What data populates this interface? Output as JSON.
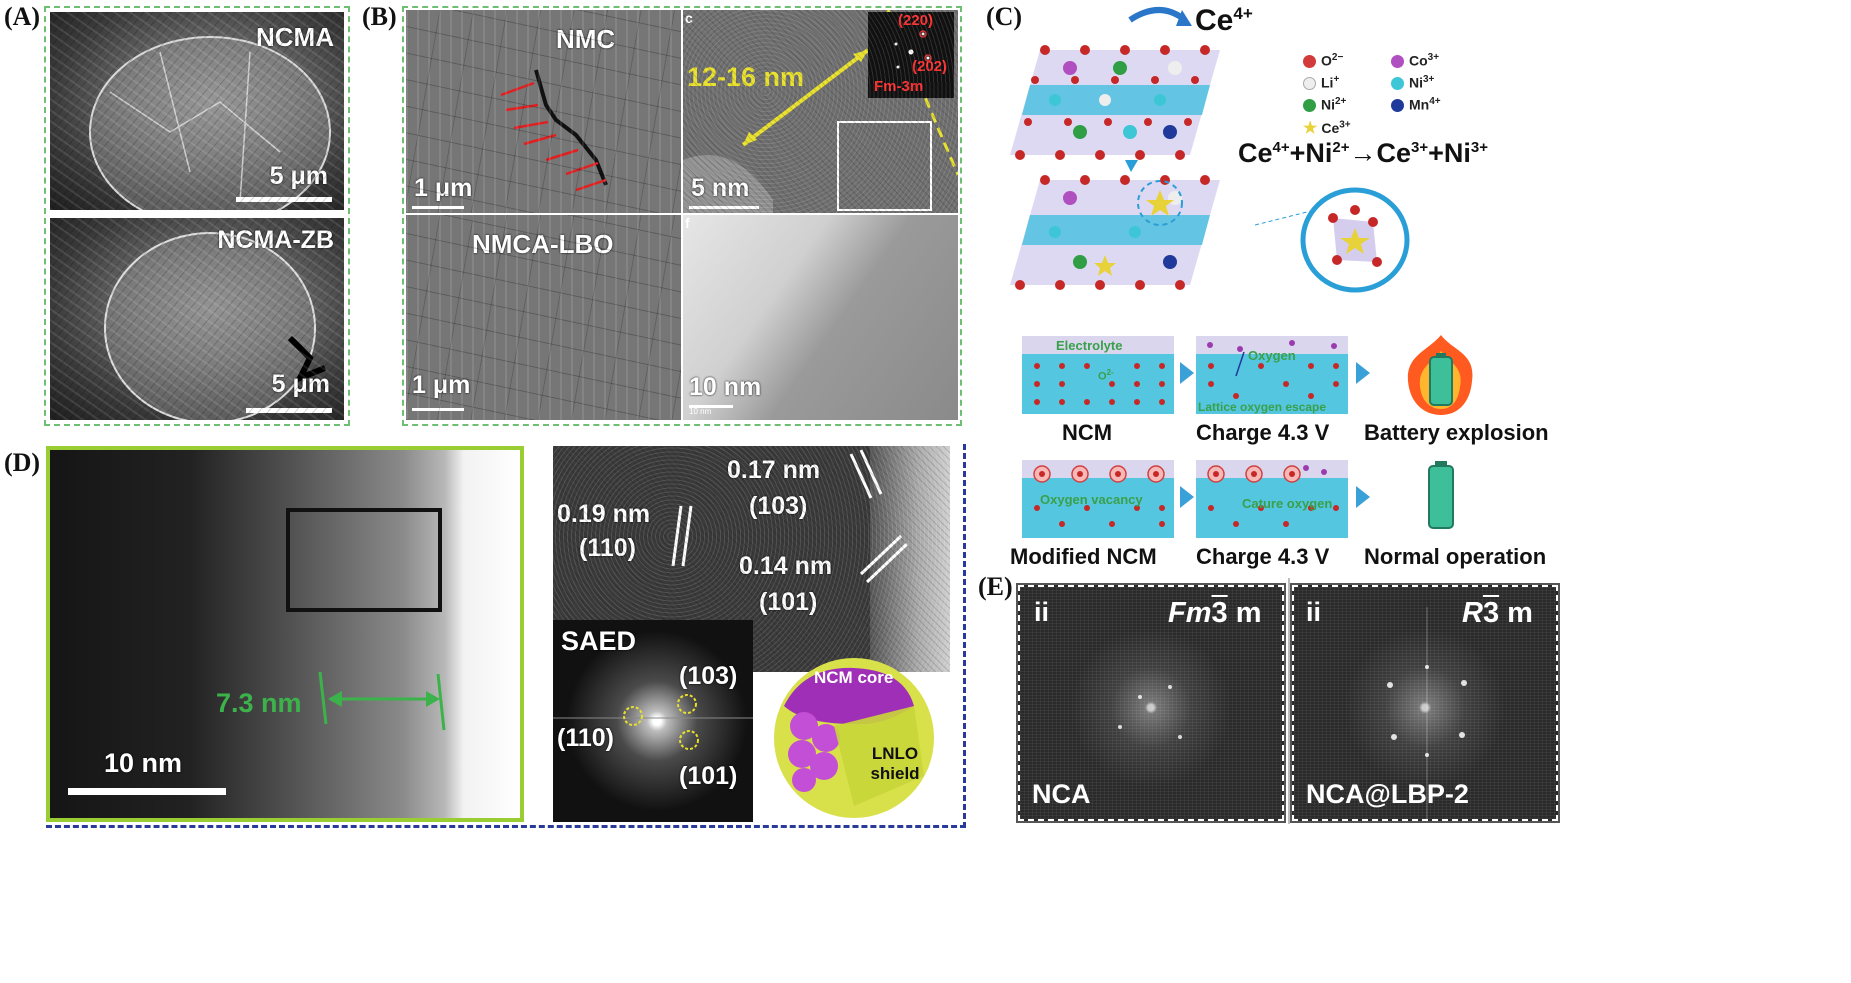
{
  "panel_labels": {
    "a": "(A)",
    "b": "(B)",
    "c": "(C)",
    "d": "(D)",
    "e": "(E)"
  },
  "panel_a": {
    "top_sample": "NCMA",
    "top_scale": "5 μm",
    "bottom_sample": "NCMA-ZB",
    "bottom_scale": "5 μm"
  },
  "panel_b": {
    "nmc_label": "NMC",
    "nmc_scale": "1 μm",
    "hr_thickness": "12-16 nm",
    "hr_scale": "5 nm",
    "fft_spot_1": "(220)",
    "fft_spot_2": "(202)",
    "fft_space_group": "Fm-3m",
    "hr_sublabel_top": "c",
    "lbo_label": "NMCA-LBO",
    "lbo_scale": "1 μm",
    "tem2_sublabel": "f",
    "tem2_scale": "10 nm",
    "tem2_scale_small": "10 nm"
  },
  "panel_c": {
    "dopant": "Ce",
    "dopant_charge": "4+",
    "legend": [
      {
        "ion": "O",
        "charge": "2−",
        "color": "#d23b3b"
      },
      {
        "ion": "Li",
        "charge": "+",
        "color": "#eeeeee"
      },
      {
        "ion": "Ni",
        "charge": "2+",
        "color": "#2f9e44"
      },
      {
        "ion": "Ce",
        "charge": "3+",
        "color": "#e8d23a"
      },
      {
        "ion": "Co",
        "charge": "3+",
        "color": "#b04fc0"
      },
      {
        "ion": "Ni",
        "charge": "3+",
        "color": "#3cc6d6"
      },
      {
        "ion": "Mn",
        "charge": "4+",
        "color": "#1f3a9a"
      }
    ],
    "reaction": {
      "r1": "Ce",
      "r1c": "4+",
      "plus1": "+",
      "r2": "Ni",
      "r2c": "2+",
      "arrow": "→",
      "p1": "Ce",
      "p1c": "3+",
      "plus2": "+",
      "p2": "Ni",
      "p2c": "3+"
    },
    "schematic": {
      "electrolyte": "Electrolyte",
      "o_minus": "O",
      "o_minus_charge": "2-",
      "oxygen": "Oxygen",
      "lattice_escape": "Lattice oxygen escape",
      "oxygen_vacancy": "Oxygen vacancy",
      "cature_oxygen": "Cature oxygen",
      "row1": [
        "NCM",
        "Charge 4.3 V",
        "Battery explosion"
      ],
      "row2": [
        "Modified NCM",
        "Charge 4.3 V",
        "Normal operation"
      ],
      "colors": {
        "electrolyte": "#d9d6ee",
        "bulk": "#55c6e0",
        "atom": "#c62828",
        "flame": "#ff5a1f",
        "battery": "#3dbf9a"
      }
    }
  },
  "panel_d": {
    "thickness": "7.3 nm",
    "scale": "10 nm",
    "d1": "0.19 nm",
    "h1": "(110)",
    "d2": "0.17 nm",
    "h2": "(103)",
    "d3": "0.14 nm",
    "h3": "(101)",
    "saed_title": "SAED",
    "saed_103": "(103)",
    "saed_110": "(110)",
    "saed_101": "(101)",
    "core_label": "NCM core",
    "shield_label": "LNLO shield",
    "colors": {
      "frame": "#9acd32",
      "arrow": "#3cb34a",
      "core": "#a02fb8",
      "shell": "#d8e04a"
    }
  },
  "panel_e": {
    "left": {
      "index": "ii",
      "space_group_italic": "Fm",
      "space_group_digit": "3",
      "space_group_tail": "m",
      "sample": "NCA"
    },
    "right": {
      "index": "ii",
      "space_group_italic": "R",
      "space_group_digit": "3",
      "space_group_tail": "m",
      "sample": "NCA@LBP-2"
    }
  }
}
